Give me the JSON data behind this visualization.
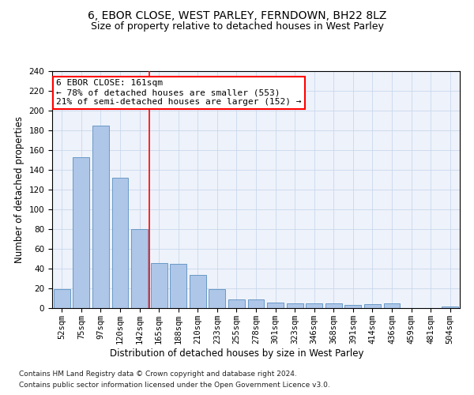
{
  "title1": "6, EBOR CLOSE, WEST PARLEY, FERNDOWN, BH22 8LZ",
  "title2": "Size of property relative to detached houses in West Parley",
  "xlabel": "Distribution of detached houses by size in West Parley",
  "ylabel": "Number of detached properties",
  "footnote1": "Contains HM Land Registry data © Crown copyright and database right 2024.",
  "footnote2": "Contains public sector information licensed under the Open Government Licence v3.0.",
  "categories": [
    "52sqm",
    "75sqm",
    "97sqm",
    "120sqm",
    "142sqm",
    "165sqm",
    "188sqm",
    "210sqm",
    "233sqm",
    "255sqm",
    "278sqm",
    "301sqm",
    "323sqm",
    "346sqm",
    "368sqm",
    "391sqm",
    "414sqm",
    "436sqm",
    "459sqm",
    "481sqm",
    "504sqm"
  ],
  "values": [
    19,
    153,
    185,
    132,
    80,
    46,
    45,
    34,
    19,
    9,
    9,
    6,
    5,
    5,
    5,
    3,
    4,
    5,
    0,
    0,
    2
  ],
  "bar_color": "#aec6e8",
  "bar_edge_color": "#5a8fc0",
  "vline_x": 4.5,
  "vline_color": "red",
  "annotation_text": "6 EBOR CLOSE: 161sqm\n← 78% of detached houses are smaller (553)\n21% of semi-detached houses are larger (152) →",
  "annotation_box_color": "white",
  "annotation_box_edge_color": "red",
  "ylim": [
    0,
    240
  ],
  "yticks": [
    0,
    20,
    40,
    60,
    80,
    100,
    120,
    140,
    160,
    180,
    200,
    220,
    240
  ],
  "title1_fontsize": 10,
  "title2_fontsize": 9,
  "xlabel_fontsize": 8.5,
  "ylabel_fontsize": 8.5,
  "tick_fontsize": 7.5,
  "annotation_fontsize": 8,
  "footnote_fontsize": 6.5,
  "background_color": "#eef2fa"
}
